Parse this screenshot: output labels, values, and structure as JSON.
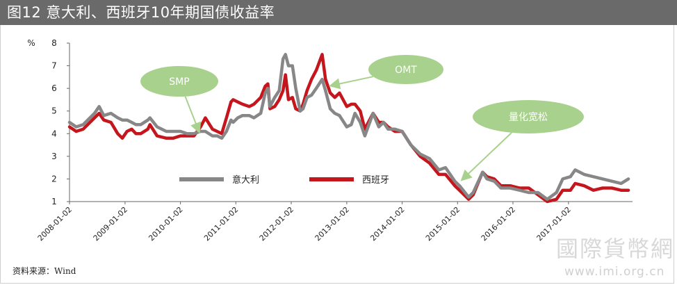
{
  "title": "图12   意大利、西班牙10年期国债收益率",
  "source": "资料来源：Wind",
  "watermark": {
    "main": "國際貨幣網",
    "url": "www.imi.org.cn"
  },
  "colors": {
    "italy": "#878787",
    "spain": "#c4161c",
    "callout": "#a9d18e",
    "title_bg": "#6a6a6a"
  },
  "chart_data": {
    "type": "line",
    "ylabel": "%",
    "ylim": [
      1,
      8
    ],
    "yticks": [
      "1",
      "2",
      "3",
      "4",
      "5",
      "6",
      "7",
      "8"
    ],
    "x_range": [
      "2008-01-02",
      "2018-02-28"
    ],
    "xticks": [
      "2008-01-02",
      "2009-01-02",
      "2010-01-02",
      "2011-01-02",
      "2012-01-02",
      "2013-01-02",
      "2014-01-02",
      "2015-01-02",
      "2016-01-02",
      "2017-01-02"
    ],
    "legend_position": "bottom-center",
    "series": [
      {
        "name": "意大利",
        "points": [
          [
            "2008-01-02",
            4.5
          ],
          [
            "2008-02-15",
            4.3
          ],
          [
            "2008-04-01",
            4.4
          ],
          [
            "2008-06-15",
            4.9
          ],
          [
            "2008-07-15",
            5.2
          ],
          [
            "2008-08-15",
            4.8
          ],
          [
            "2008-10-01",
            4.9
          ],
          [
            "2008-11-15",
            4.7
          ],
          [
            "2008-12-15",
            4.6
          ],
          [
            "2009-01-15",
            4.6
          ],
          [
            "2009-02-15",
            4.5
          ],
          [
            "2009-03-15",
            4.4
          ],
          [
            "2009-04-15",
            4.4
          ],
          [
            "2009-06-01",
            4.6
          ],
          [
            "2009-06-15",
            4.7
          ],
          [
            "2009-08-01",
            4.3
          ],
          [
            "2009-10-01",
            4.1
          ],
          [
            "2009-11-15",
            4.1
          ],
          [
            "2010-01-02",
            4.1
          ],
          [
            "2010-02-15",
            4.0
          ],
          [
            "2010-04-01",
            4.0
          ],
          [
            "2010-05-15",
            4.1
          ],
          [
            "2010-06-15",
            4.1
          ],
          [
            "2010-08-01",
            3.9
          ],
          [
            "2010-09-01",
            3.9
          ],
          [
            "2010-10-01",
            3.8
          ],
          [
            "2010-11-01",
            4.1
          ],
          [
            "2010-12-01",
            4.6
          ],
          [
            "2010-12-15",
            4.5
          ],
          [
            "2011-01-15",
            4.7
          ],
          [
            "2011-02-15",
            4.8
          ],
          [
            "2011-04-01",
            4.8
          ],
          [
            "2011-05-01",
            4.7
          ],
          [
            "2011-06-15",
            4.9
          ],
          [
            "2011-07-15",
            5.8
          ],
          [
            "2011-08-01",
            6.0
          ],
          [
            "2011-08-15",
            5.2
          ],
          [
            "2011-09-15",
            5.6
          ],
          [
            "2011-10-15",
            5.9
          ],
          [
            "2011-11-09",
            7.3
          ],
          [
            "2011-11-25",
            7.5
          ],
          [
            "2011-12-15",
            7.0
          ],
          [
            "2012-01-10",
            7.0
          ],
          [
            "2012-02-01",
            6.0
          ],
          [
            "2012-03-01",
            5.0
          ],
          [
            "2012-03-20",
            5.1
          ],
          [
            "2012-04-15",
            5.6
          ],
          [
            "2012-05-15",
            5.7
          ],
          [
            "2012-06-15",
            6.0
          ],
          [
            "2012-07-24",
            6.4
          ],
          [
            "2012-08-15",
            5.9
          ],
          [
            "2012-09-15",
            5.1
          ],
          [
            "2012-10-15",
            4.9
          ],
          [
            "2012-11-15",
            4.8
          ],
          [
            "2013-01-02",
            4.3
          ],
          [
            "2013-02-01",
            4.4
          ],
          [
            "2013-02-25",
            4.9
          ],
          [
            "2013-04-01",
            4.5
          ],
          [
            "2013-05-01",
            3.9
          ],
          [
            "2013-06-24",
            4.9
          ],
          [
            "2013-08-01",
            4.3
          ],
          [
            "2013-09-01",
            4.5
          ],
          [
            "2013-10-01",
            4.2
          ],
          [
            "2013-11-15",
            4.2
          ],
          [
            "2014-01-02",
            4.1
          ],
          [
            "2014-03-01",
            3.5
          ],
          [
            "2014-05-01",
            3.1
          ],
          [
            "2014-07-01",
            2.9
          ],
          [
            "2014-09-01",
            2.4
          ],
          [
            "2014-10-15",
            2.5
          ],
          [
            "2014-12-15",
            1.9
          ],
          [
            "2015-01-15",
            1.7
          ],
          [
            "2015-03-16",
            1.2
          ],
          [
            "2015-04-15",
            1.4
          ],
          [
            "2015-06-16",
            2.3
          ],
          [
            "2015-07-15",
            2.0
          ],
          [
            "2015-09-01",
            1.9
          ],
          [
            "2015-10-15",
            1.6
          ],
          [
            "2015-12-15",
            1.6
          ],
          [
            "2016-02-15",
            1.5
          ],
          [
            "2016-04-15",
            1.4
          ],
          [
            "2016-06-15",
            1.4
          ],
          [
            "2016-08-15",
            1.1
          ],
          [
            "2016-10-15",
            1.4
          ],
          [
            "2016-11-25",
            2.0
          ],
          [
            "2017-01-15",
            2.1
          ],
          [
            "2017-02-15",
            2.4
          ],
          [
            "2017-04-15",
            2.2
          ],
          [
            "2017-06-15",
            2.1
          ],
          [
            "2017-08-15",
            2.0
          ],
          [
            "2017-10-15",
            1.9
          ],
          [
            "2017-12-15",
            1.8
          ],
          [
            "2018-02-01",
            2.0
          ]
        ]
      },
      {
        "name": "西班牙",
        "points": [
          [
            "2008-01-02",
            4.3
          ],
          [
            "2008-02-15",
            4.1
          ],
          [
            "2008-04-01",
            4.2
          ],
          [
            "2008-06-15",
            4.7
          ],
          [
            "2008-07-15",
            4.9
          ],
          [
            "2008-08-15",
            4.6
          ],
          [
            "2008-10-01",
            4.5
          ],
          [
            "2008-11-15",
            4.0
          ],
          [
            "2008-12-15",
            3.8
          ],
          [
            "2009-01-15",
            4.1
          ],
          [
            "2009-02-15",
            4.2
          ],
          [
            "2009-03-15",
            4.0
          ],
          [
            "2009-04-15",
            4.0
          ],
          [
            "2009-06-01",
            4.2
          ],
          [
            "2009-06-15",
            4.4
          ],
          [
            "2009-08-01",
            3.9
          ],
          [
            "2009-10-01",
            3.8
          ],
          [
            "2009-11-15",
            3.8
          ],
          [
            "2010-01-02",
            3.9
          ],
          [
            "2010-02-15",
            3.9
          ],
          [
            "2010-04-01",
            3.9
          ],
          [
            "2010-05-15",
            4.3
          ],
          [
            "2010-06-15",
            4.7
          ],
          [
            "2010-08-01",
            4.2
          ],
          [
            "2010-09-01",
            4.1
          ],
          [
            "2010-10-01",
            4.0
          ],
          [
            "2010-11-01",
            4.7
          ],
          [
            "2010-12-01",
            5.4
          ],
          [
            "2010-12-15",
            5.5
          ],
          [
            "2011-01-15",
            5.4
          ],
          [
            "2011-02-15",
            5.3
          ],
          [
            "2011-04-01",
            5.2
          ],
          [
            "2011-05-01",
            5.3
          ],
          [
            "2011-06-15",
            5.6
          ],
          [
            "2011-07-15",
            6.1
          ],
          [
            "2011-08-01",
            6.2
          ],
          [
            "2011-08-15",
            5.1
          ],
          [
            "2011-09-15",
            5.2
          ],
          [
            "2011-10-15",
            5.5
          ],
          [
            "2011-11-09",
            5.9
          ],
          [
            "2011-11-25",
            6.6
          ],
          [
            "2011-12-15",
            5.5
          ],
          [
            "2012-01-10",
            5.6
          ],
          [
            "2012-02-01",
            5.1
          ],
          [
            "2012-03-01",
            5.0
          ],
          [
            "2012-03-20",
            5.3
          ],
          [
            "2012-04-15",
            5.9
          ],
          [
            "2012-05-15",
            6.4
          ],
          [
            "2012-06-15",
            6.8
          ],
          [
            "2012-07-24",
            7.5
          ],
          [
            "2012-08-15",
            6.4
          ],
          [
            "2012-09-15",
            5.8
          ],
          [
            "2012-10-15",
            5.6
          ],
          [
            "2012-11-15",
            5.8
          ],
          [
            "2013-01-02",
            5.2
          ],
          [
            "2013-02-01",
            5.3
          ],
          [
            "2013-02-25",
            5.3
          ],
          [
            "2013-04-01",
            5.0
          ],
          [
            "2013-05-01",
            4.2
          ],
          [
            "2013-06-24",
            4.9
          ],
          [
            "2013-08-01",
            4.5
          ],
          [
            "2013-09-01",
            4.5
          ],
          [
            "2013-10-01",
            4.3
          ],
          [
            "2013-11-15",
            4.1
          ],
          [
            "2014-01-02",
            4.1
          ],
          [
            "2014-03-01",
            3.5
          ],
          [
            "2014-05-01",
            3.0
          ],
          [
            "2014-07-01",
            2.7
          ],
          [
            "2014-09-01",
            2.2
          ],
          [
            "2014-10-15",
            2.2
          ],
          [
            "2014-12-15",
            1.7
          ],
          [
            "2015-01-15",
            1.5
          ],
          [
            "2015-03-16",
            1.1
          ],
          [
            "2015-04-15",
            1.3
          ],
          [
            "2015-06-16",
            2.3
          ],
          [
            "2015-07-15",
            2.1
          ],
          [
            "2015-09-01",
            2.0
          ],
          [
            "2015-10-15",
            1.7
          ],
          [
            "2015-12-15",
            1.7
          ],
          [
            "2016-02-15",
            1.6
          ],
          [
            "2016-04-15",
            1.6
          ],
          [
            "2016-06-15",
            1.3
          ],
          [
            "2016-08-15",
            1.0
          ],
          [
            "2016-10-15",
            1.1
          ],
          [
            "2016-11-25",
            1.5
          ],
          [
            "2017-01-15",
            1.5
          ],
          [
            "2017-02-15",
            1.8
          ],
          [
            "2017-04-15",
            1.7
          ],
          [
            "2017-06-15",
            1.5
          ],
          [
            "2017-08-15",
            1.6
          ],
          [
            "2017-10-15",
            1.6
          ],
          [
            "2017-12-15",
            1.5
          ],
          [
            "2018-02-01",
            1.5
          ]
        ]
      }
    ],
    "annotations": [
      {
        "text": "SMP",
        "date": "2010-05-10",
        "value": 4.0
      },
      {
        "text": "OMT",
        "date": "2012-09-06",
        "value": 6.1
      },
      {
        "text": "量化宽松",
        "date": "2015-01-22",
        "value": 1.9
      }
    ]
  }
}
